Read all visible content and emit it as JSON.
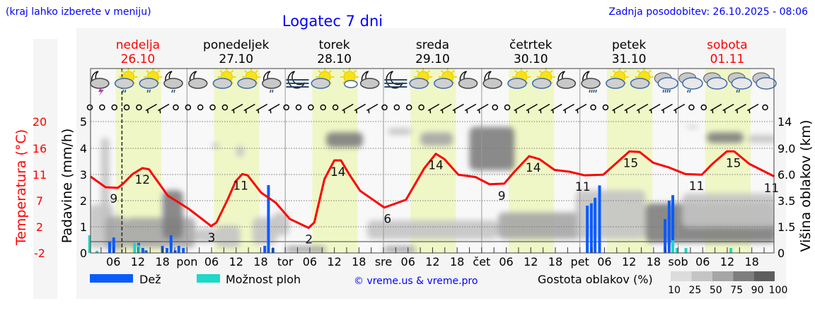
{
  "header": {
    "hint": "(kraj lahko izberete v meniju)",
    "title": "Logatec 7 dni",
    "updated": "Zadnja posodobitev: 26.10.2025 - 08:06"
  },
  "days": [
    {
      "name": "nedelja",
      "date": "26.10",
      "weekend": true
    },
    {
      "name": "ponedeljek",
      "date": "27.10",
      "weekend": false
    },
    {
      "name": "torek",
      "date": "28.10",
      "weekend": false
    },
    {
      "name": "sreda",
      "date": "29.10",
      "weekend": false
    },
    {
      "name": "četrtek",
      "date": "30.10",
      "weekend": false
    },
    {
      "name": "petek",
      "date": "31.10",
      "weekend": false
    },
    {
      "name": "sobota",
      "date": "01.11",
      "weekend": true
    }
  ],
  "legend": {
    "rain": "Dež",
    "showers": "Možnost ploh",
    "copyright": "© vreme.us & vreme.pro",
    "cloud_density": "Gostota oblakov (%)",
    "density_steps": [
      "10",
      "25",
      "50",
      "75",
      "90",
      "100"
    ]
  },
  "colors": {
    "rain": "#0a5cff",
    "showers": "#1ed8c8",
    "temperature": "#ff0000",
    "daylight": "#f0f7c6",
    "title": "#0000ff"
  },
  "chart_data": {
    "type": "line",
    "title": "Logatec 7 dni",
    "x_unit": "hours since 26.10 00:00",
    "x_range": [
      0,
      167.5
    ],
    "x_tick_labels": [
      "06",
      "12",
      "18",
      "pon",
      "06",
      "12",
      "18",
      "tor",
      "06",
      "12",
      "18",
      "sre",
      "06",
      "12",
      "18",
      "čet",
      "06",
      "12",
      "18",
      "pet",
      "06",
      "12",
      "18",
      "sob",
      "06",
      "12",
      "18"
    ],
    "now_hour": 8.1,
    "daylight": {
      "sunrise_hour": 6.6,
      "sunset_hour": 17.7
    },
    "y_axes": {
      "temperature": {
        "label": "Temperatura (°C)",
        "range": [
          -2,
          20
        ],
        "ticks": [
          "20",
          "16",
          "11",
          "7",
          "2",
          "-2"
        ]
      },
      "precipitation": {
        "label": "Padavine (mm/h)",
        "range": [
          0,
          5
        ],
        "ticks": [
          "5",
          "4",
          "3",
          "2",
          "1",
          "0"
        ]
      },
      "cloud_height": {
        "label": "Višina oblakov (km)",
        "ticks": [
          "14",
          "9.0",
          "6.0",
          "3.5",
          "1.5",
          "0"
        ],
        "tick_values": [
          14,
          9,
          6,
          3.5,
          1.5,
          0
        ]
      }
    },
    "temperature": {
      "hours": [
        0.4,
        4.1,
        7.1,
        8.4,
        10.7,
        13.1,
        14.7,
        19.3,
        24.6,
        29.9,
        31.2,
        33.9,
        35.9,
        37.5,
        38.8,
        42.1,
        45.7,
        49.1,
        53.7,
        55.1,
        57.6,
        60.0,
        61.6,
        63.6,
        66.3,
        72.2,
        77.5,
        82.0,
        84.8,
        86.9,
        90.3,
        94.5,
        97.9,
        101.5,
        104.0,
        107.6,
        110.1,
        113.8,
        117.4,
        121.1,
        125.7,
        128.5,
        132.1,
        134.6,
        137.9,
        141.8,
        145.8,
        149.8,
        152.2,
        155.9,
        157.7,
        161.4,
        167.5
      ],
      "values": [
        10.8,
        9.0,
        8.9,
        9.6,
        11.2,
        12.2,
        12.0,
        7.6,
        5.3,
        2.5,
        3.1,
        6.9,
        10.0,
        11.2,
        11.0,
        8.1,
        6.4,
        3.7,
        2.2,
        3.1,
        10.4,
        13.5,
        13.5,
        11.2,
        8.4,
        5.6,
        6.9,
        12.2,
        14.6,
        13.7,
        11.1,
        10.7,
        9.5,
        9.6,
        11.6,
        14.2,
        13.7,
        11.9,
        11.6,
        11.0,
        11.1,
        12.8,
        15.0,
        14.9,
        13.1,
        12.3,
        11.2,
        11.1,
        12.8,
        15.0,
        15.0,
        12.9,
        10.8
      ]
    },
    "temperature_labels": [
      {
        "hour": 6.1,
        "value": "9",
        "t": 9.0
      },
      {
        "hour": 13.1,
        "value": "12",
        "t": 12.2
      },
      {
        "hour": 30.0,
        "value": "3",
        "t": 2.5
      },
      {
        "hour": 37.1,
        "value": "11",
        "t": 11.2
      },
      {
        "hour": 53.8,
        "value": "2",
        "t": 2.2
      },
      {
        "hour": 60.9,
        "value": "14",
        "t": 13.5
      },
      {
        "hour": 73.0,
        "value": "6",
        "t": 5.6
      },
      {
        "hour": 84.8,
        "value": "14",
        "t": 14.6
      },
      {
        "hour": 100.9,
        "value": "9",
        "t": 9.5
      },
      {
        "hour": 108.6,
        "value": "14",
        "t": 14.2
      },
      {
        "hour": 120.7,
        "value": "11",
        "t": 11.0
      },
      {
        "hour": 132.4,
        "value": "15",
        "t": 15.0
      },
      {
        "hour": 148.5,
        "value": "11",
        "t": 11.1
      },
      {
        "hour": 157.5,
        "value": "15",
        "t": 15.0
      },
      {
        "hour": 166.8,
        "value": "11",
        "t": 10.8
      }
    ],
    "precipitation": [
      {
        "hour": 0.2,
        "rain": 0,
        "showers": 0.67
      },
      {
        "hour": 2.0,
        "rain": 0,
        "showers": 0.08
      },
      {
        "hour": 5.1,
        "rain": 0.41,
        "showers": 0
      },
      {
        "hour": 6.1,
        "rain": 0.59,
        "showers": 0
      },
      {
        "hour": 11.2,
        "rain": 0,
        "showers": 0.38
      },
      {
        "hour": 12.2,
        "rain": 0.38,
        "showers": 0.3
      },
      {
        "hour": 13.2,
        "rain": 0.19,
        "showers": 0
      },
      {
        "hour": 14.0,
        "rain": 0.1,
        "showers": 0
      },
      {
        "hour": 18.0,
        "rain": 0.27,
        "showers": 0
      },
      {
        "hour": 19.1,
        "rain": 0.19,
        "showers": 0
      },
      {
        "hour": 20.1,
        "rain": 0.67,
        "showers": 0
      },
      {
        "hour": 21.1,
        "rain": 0.1,
        "showers": 0
      },
      {
        "hour": 22.0,
        "rain": 0.27,
        "showers": 0
      },
      {
        "hour": 23.1,
        "rain": 0.19,
        "showers": 0
      },
      {
        "hour": 43.0,
        "rain": 0.27,
        "showers": 0
      },
      {
        "hour": 43.9,
        "rain": 2.58,
        "showers": 0
      },
      {
        "hour": 45.0,
        "rain": 0.19,
        "showers": 0
      },
      {
        "hour": 121.8,
        "rain": 1.8,
        "showers": 0
      },
      {
        "hour": 122.8,
        "rain": 1.89,
        "showers": 0
      },
      {
        "hour": 123.7,
        "rain": 2.1,
        "showers": 0
      },
      {
        "hour": 124.8,
        "rain": 2.57,
        "showers": 0
      },
      {
        "hour": 140.8,
        "rain": 1.29,
        "showers": 0
      },
      {
        "hour": 141.8,
        "rain": 1.99,
        "showers": 0
      },
      {
        "hour": 142.7,
        "rain": 2.2,
        "showers": 0.48
      },
      {
        "hour": 143.7,
        "rain": 0,
        "showers": 0.19
      },
      {
        "hour": 145.9,
        "rain": 0,
        "showers": 0.19
      },
      {
        "hour": 156.9,
        "rain": 0,
        "showers": 0.19
      }
    ],
    "clouds": [
      {
        "h0": 0,
        "h1": 6,
        "km0": 0.3,
        "km1": 3.2,
        "density": 40
      },
      {
        "h0": 3,
        "h1": 5,
        "km0": 1.0,
        "km1": 11,
        "density": 30
      },
      {
        "h0": 4,
        "h1": 9,
        "km0": 0.2,
        "km1": 2.3,
        "density": 60
      },
      {
        "h0": 9,
        "h1": 26,
        "km0": 0.3,
        "km1": 2.2,
        "density": 50
      },
      {
        "h0": 18,
        "h1": 23,
        "km0": 0.8,
        "km1": 4.5,
        "density": 75
      },
      {
        "h0": 26,
        "h1": 31,
        "km0": 0.6,
        "km1": 1.4,
        "density": 30
      },
      {
        "h0": 31,
        "h1": 37,
        "km0": 0.3,
        "km1": 1.6,
        "density": 30
      },
      {
        "h0": 30,
        "h1": 32,
        "km0": 9,
        "km1": 10,
        "density": 40
      },
      {
        "h0": 36,
        "h1": 38,
        "km0": 8,
        "km1": 9.5,
        "density": 30
      },
      {
        "h0": 40,
        "h1": 46,
        "km0": 0.5,
        "km1": 2.2,
        "density": 40
      },
      {
        "h0": 45,
        "h1": 49,
        "km0": 1.0,
        "km1": 2.6,
        "density": 30
      },
      {
        "h0": 48,
        "h1": 58,
        "km0": 0.0,
        "km1": 0.4,
        "density": 60
      },
      {
        "h0": 58,
        "h1": 67,
        "km0": 9.2,
        "km1": 12,
        "density": 85
      },
      {
        "h0": 68,
        "h1": 100,
        "km0": 0.8,
        "km1": 2.0,
        "density": 40
      },
      {
        "h0": 72,
        "h1": 80,
        "km0": 0.0,
        "km1": 0.4,
        "density": 50
      },
      {
        "h0": 73,
        "h1": 79,
        "km0": 11.5,
        "km1": 12.8,
        "density": 30
      },
      {
        "h0": 81,
        "h1": 89,
        "km0": 9.5,
        "km1": 12,
        "density": 70
      },
      {
        "h0": 93,
        "h1": 104,
        "km0": 6.5,
        "km1": 13,
        "density": 75
      },
      {
        "h0": 100,
        "h1": 120,
        "km0": 0.8,
        "km1": 2.6,
        "density": 50
      },
      {
        "h0": 119,
        "h1": 136,
        "km0": 0.8,
        "km1": 4.5,
        "density": 45
      },
      {
        "h0": 136,
        "h1": 168,
        "km0": 0.6,
        "km1": 3.3,
        "density": 75
      },
      {
        "h0": 145,
        "h1": 168,
        "km0": 1.5,
        "km1": 4.2,
        "density": 30
      },
      {
        "h0": 146,
        "h1": 149,
        "km0": 12.8,
        "km1": 13.3,
        "density": 30
      },
      {
        "h0": 151,
        "h1": 160,
        "km0": 10,
        "km1": 12,
        "density": 80
      },
      {
        "h0": 161,
        "h1": 168,
        "km0": 10,
        "km1": 11.5,
        "density": 40
      }
    ],
    "weather_icons": [
      "moon-cloud-thunder",
      "sun-cloud-rain",
      "sun-cloud-rain",
      "moon-cloud-rain",
      "moon-cloud",
      "sun-cloud",
      "sun-cloud",
      "moon-cloud-rain",
      "moon-fog",
      "sun-cloud",
      "sun-small-cloud",
      "moon-cloud",
      "moon-fog",
      "sun-cloud",
      "sun-cloud",
      "moon-cloud",
      "moon-cloud",
      "sun-cloud",
      "sun-cloud",
      "moon-cloud",
      "moon-cloud-heavy-rain",
      "sun-cloud",
      "sun-cloud",
      "overcast-heavy-rain",
      "overcast-rain",
      "overcast",
      "overcast-rain",
      "overcast"
    ],
    "wind": [
      "calm",
      "calm",
      "calm",
      "calm",
      "calm",
      "wind",
      "wind",
      "calm",
      "calm",
      "calm",
      "calm",
      "calm",
      "wind",
      "wind",
      "wind",
      "wind",
      "calm",
      "calm",
      "calm",
      "calm",
      "calm",
      "wind",
      "wind",
      "wind",
      "calm",
      "calm",
      "calm",
      "calm",
      "wind",
      "wind",
      "wind",
      "wind",
      "wind",
      "calm",
      "calm",
      "wind",
      "wind",
      "wind",
      "wind",
      "wind",
      "wind",
      "calm",
      "calm",
      "wind",
      "wind",
      "wind",
      "wind",
      "wind",
      "wind",
      "calm",
      "calm",
      "wind",
      "wind",
      "wind",
      "wind",
      "calm"
    ]
  }
}
